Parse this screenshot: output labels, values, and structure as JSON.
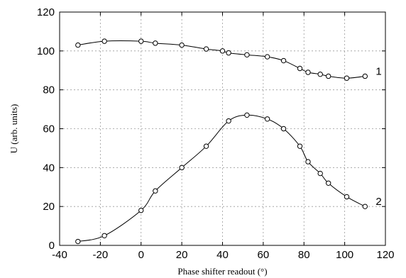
{
  "chart_data": {
    "type": "line",
    "title": "",
    "xlabel": "Phase shifter readout (°)",
    "ylabel": "U (arb. units)",
    "xlim": [
      -40,
      120
    ],
    "ylim": [
      0,
      120
    ],
    "x_ticks": [
      "-40",
      "-20",
      "0",
      "20",
      "40",
      "60",
      "80",
      "100",
      "120"
    ],
    "y_ticks": [
      "0",
      "20",
      "40",
      "60",
      "80",
      "100",
      "120"
    ],
    "grid": true,
    "series": [
      {
        "name": "1",
        "x": [
          -31,
          -18,
          0,
          7,
          20,
          32,
          40,
          43,
          52,
          62,
          70,
          78,
          82,
          88,
          92,
          101,
          110
        ],
        "y": [
          103,
          105,
          105,
          104,
          103,
          101,
          100,
          99,
          98,
          97,
          95,
          91,
          89,
          88,
          87,
          86,
          87
        ]
      },
      {
        "name": "2",
        "x": [
          -31,
          -18,
          0,
          7,
          20,
          32,
          43,
          52,
          62,
          70,
          78,
          82,
          88,
          92,
          101,
          110
        ],
        "y": [
          2,
          5,
          18,
          28,
          40,
          51,
          64,
          67,
          65,
          60,
          51,
          43,
          37,
          32,
          25,
          20
        ]
      }
    ]
  }
}
